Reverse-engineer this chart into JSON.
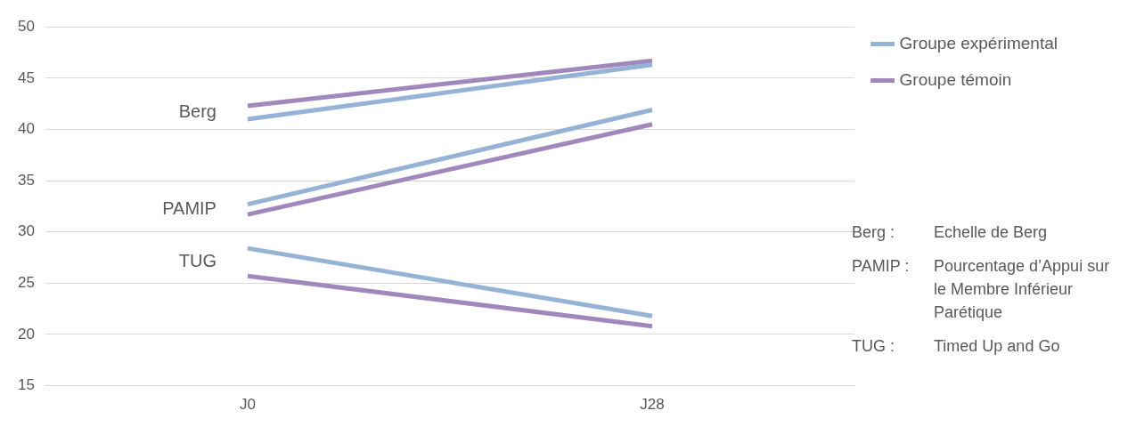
{
  "chart_data": {
    "type": "line",
    "categories": [
      "J0",
      "J28"
    ],
    "series": [
      {
        "name": "Groupe expérimental",
        "color": "#95b3d7",
        "values": [
          41.0,
          46.3
        ]
      },
      {
        "name": "Groupe témoin",
        "color": "#a088bd",
        "values": [
          42.3,
          46.7
        ]
      },
      {
        "color": "#95b3d7",
        "values": [
          32.7,
          41.9
        ]
      },
      {
        "color": "#a088bd",
        "values": [
          31.7,
          40.5
        ]
      },
      {
        "color": "#95b3d7",
        "values": [
          28.4,
          21.8
        ]
      },
      {
        "color": "#a088bd",
        "values": [
          25.7,
          20.8
        ]
      }
    ],
    "ylim": [
      15,
      50
    ],
    "yticks": [
      15,
      20,
      25,
      30,
      35,
      40,
      45,
      50
    ],
    "grid": "y",
    "legend": "right",
    "marker": "none",
    "line_style": "solid",
    "annotations": [
      "Berg",
      "PAMIP",
      "TUG",
      "Berg :",
      "Echelle de Berg",
      "PAMIP :",
      "Pourcentage d’Appui sur le Membre Inférieur Parétique",
      "TUG :",
      "Timed Up and Go"
    ]
  }
}
